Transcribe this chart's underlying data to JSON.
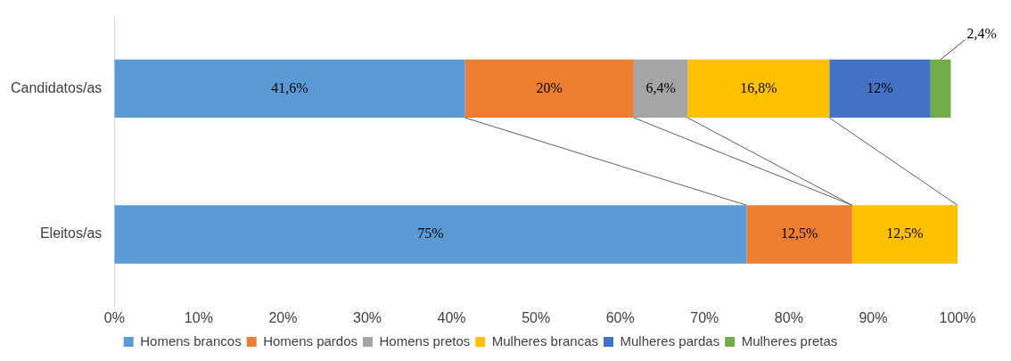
{
  "chart_data": {
    "type": "bar",
    "orientation": "horizontal",
    "stacked": true,
    "categories": [
      "Candidatos/as",
      "Eleitos/as"
    ],
    "series": [
      {
        "name": "Homens brancos",
        "color": "#5b9bd5",
        "values": [
          41.6,
          75
        ],
        "value_labels": [
          "41,6%",
          "75%"
        ]
      },
      {
        "name": "Homens pardos",
        "color": "#ed7d31",
        "values": [
          20,
          12.5
        ],
        "value_labels": [
          "20%",
          "12,5%"
        ]
      },
      {
        "name": "Homens pretos",
        "color": "#a5a5a5",
        "values": [
          6.4,
          null
        ],
        "value_labels": [
          "6,4%",
          null
        ]
      },
      {
        "name": "Mulheres brancas",
        "color": "#ffc000",
        "values": [
          16.8,
          12.5
        ],
        "value_labels": [
          "16,8%",
          "12,5%"
        ]
      },
      {
        "name": "Mulheres pardas",
        "color": "#4472c4",
        "values": [
          12,
          null
        ],
        "value_labels": [
          "12%",
          null
        ]
      },
      {
        "name": "Mulheres pretas",
        "color": "#70ad47",
        "values": [
          2.4,
          null
        ],
        "value_labels": [
          "2,4%",
          null
        ]
      }
    ],
    "xlim": [
      0,
      100
    ],
    "xticks": [
      {
        "value": 0,
        "label": "0%"
      },
      {
        "value": 10,
        "label": "10%"
      },
      {
        "value": 20,
        "label": "20%"
      },
      {
        "value": 30,
        "label": "30%"
      },
      {
        "value": 40,
        "label": "40%"
      },
      {
        "value": 50,
        "label": "50%"
      },
      {
        "value": 60,
        "label": "60%"
      },
      {
        "value": 70,
        "label": "70%"
      },
      {
        "value": 80,
        "label": "80%"
      },
      {
        "value": 90,
        "label": "90%"
      },
      {
        "value": 100,
        "label": "100%"
      }
    ],
    "grid": false,
    "legend": "bottom"
  }
}
